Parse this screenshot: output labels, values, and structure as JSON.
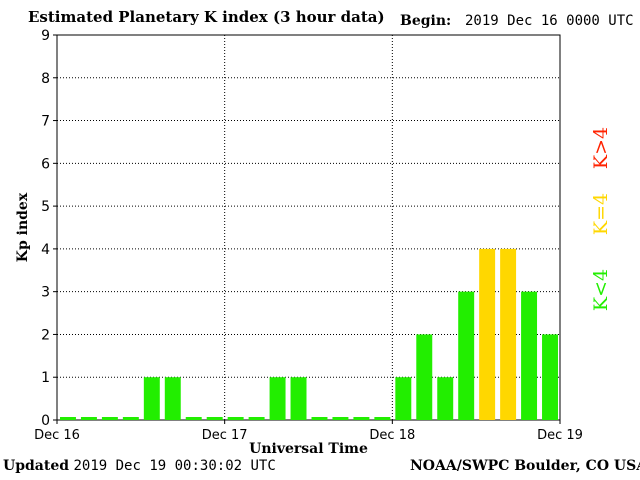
{
  "header": {
    "title": "Estimated Planetary K index (3 hour data)",
    "begin_label": "Begin:",
    "begin_value": "2019 Dec 16 0000 UTC"
  },
  "footer": {
    "updated_label": "Updated",
    "updated_value": "2019 Dec 19 00:30:02 UTC",
    "credit": "NOAA/SWPC Boulder, CO USA"
  },
  "legend": {
    "above": "K>4",
    "equal": "K=4",
    "below": "K<4"
  },
  "colors": {
    "below": "#22ee00",
    "equal": "#ffd700",
    "above": "#ff2200",
    "background": "#ffffff",
    "axis": "#000000"
  },
  "chart_data": {
    "type": "bar",
    "title": "Estimated Planetary K index (3 hour data)",
    "xlabel": "Universal Time",
    "ylabel": "Kp index",
    "ylim": [
      0,
      9
    ],
    "yticks": [
      0,
      1,
      2,
      3,
      4,
      5,
      6,
      7,
      8,
      9
    ],
    "x_tick_labels": [
      "Dec 16",
      "Dec 17",
      "Dec 18",
      "Dec 19"
    ],
    "grid": true,
    "bar_interval": "3 hour",
    "values": [
      0,
      0,
      0,
      0,
      1,
      1,
      0,
      0,
      0,
      0,
      1,
      1,
      0,
      0,
      0,
      0,
      1,
      2,
      1,
      3,
      4,
      4,
      3,
      2
    ]
  }
}
